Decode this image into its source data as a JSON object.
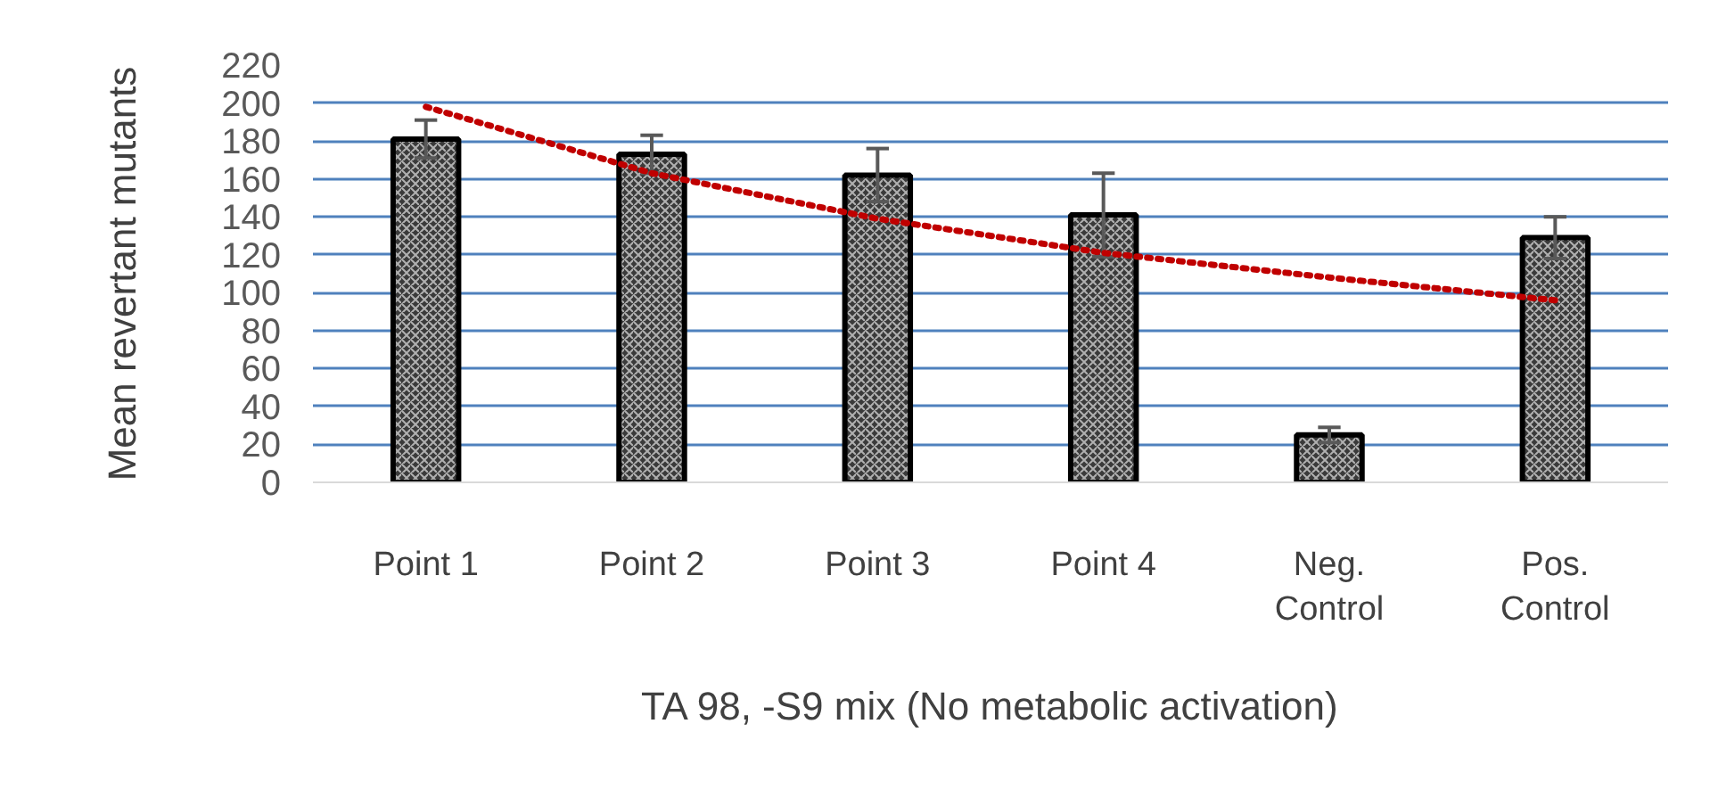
{
  "chart_data": {
    "type": "bar",
    "xlabel": "TA 98, -S9 mix (No metabolic activation)",
    "ylabel": "Mean revertant mutants",
    "categories": [
      "Point 1",
      "Point 2",
      "Point 3",
      "Point 4",
      "Neg.\nControl",
      "Pos.\nControl"
    ],
    "series": [
      {
        "color": "#3a3a3a",
        "values": [
          181,
          173,
          162,
          141,
          25,
          129
        ],
        "errors": [
          10,
          10,
          14,
          22,
          4,
          11
        ]
      },
      {
        "type": "line",
        "color": "#c00000",
        "line_style": "dotted",
        "values": [
          198,
          163,
          139,
          121,
          108,
          96
        ]
      }
    ],
    "ylim": [
      0,
      220
    ],
    "yticks": [
      0,
      20,
      40,
      60,
      80,
      100,
      120,
      140,
      160,
      180,
      200,
      220
    ],
    "grid": "y"
  }
}
